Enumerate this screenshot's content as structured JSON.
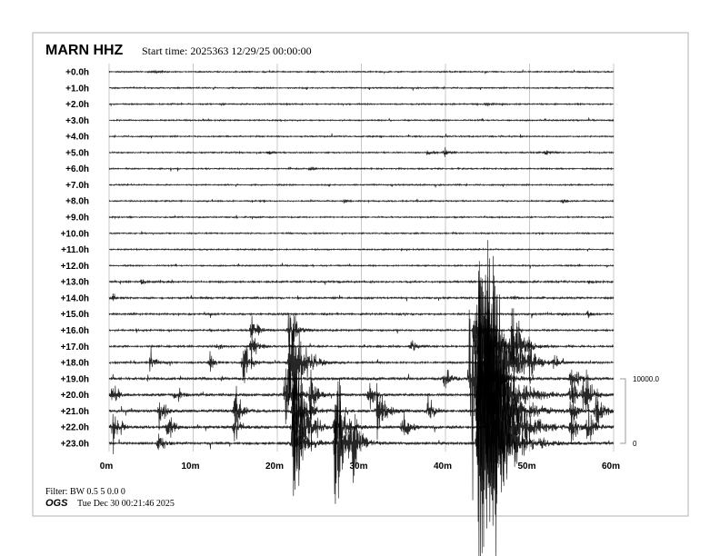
{
  "header": {
    "station": "MARN HHZ",
    "start_time": "Start time: 2025363 12/29/25 00:00:00"
  },
  "footer": {
    "filter": "Filter: BW 0.5 5 0.0 0",
    "org": "OGS",
    "generated": "Tue Dec 30 00:21:46 2025"
  },
  "chart_data": {
    "type": "helicorder",
    "title": "MARN HHZ",
    "row_labels": [
      "+0.0h",
      "+1.0h",
      "+2.0h",
      "+3.0h",
      "+4.0h",
      "+5.0h",
      "+6.0h",
      "+7.0h",
      "+8.0h",
      "+9.0h",
      "+10.0h",
      "+11.0h",
      "+12.0h",
      "+13.0h",
      "+14.0h",
      "+15.0h",
      "+16.0h",
      "+17.0h",
      "+18.0h",
      "+19.0h",
      "+20.0h",
      "+21.0h",
      "+22.0h",
      "+23.0h"
    ],
    "x_ticks": [
      "0m",
      "10m",
      "20m",
      "30m",
      "40m",
      "50m",
      "60m"
    ],
    "x_range_minutes": [
      0,
      60
    ],
    "amplitude_scale": {
      "top_label": "10000.0",
      "bottom_label": "0",
      "top_value": 10000,
      "bottom_value": 0
    },
    "grid": true,
    "trace_color": "#000000",
    "grid_color": "#c8c8c8",
    "events": [
      {
        "row": 0,
        "minute": 5.5,
        "amp": 300
      },
      {
        "row": 2,
        "minute": 45,
        "amp": 300
      },
      {
        "row": 5,
        "minute": 19,
        "amp": 400
      },
      {
        "row": 5,
        "minute": 38,
        "amp": 600
      },
      {
        "row": 5,
        "minute": 40,
        "amp": 800
      },
      {
        "row": 5,
        "minute": 52,
        "amp": 500
      },
      {
        "row": 6,
        "minute": 24,
        "amp": 300
      },
      {
        "row": 8,
        "minute": 28,
        "amp": 300
      },
      {
        "row": 8,
        "minute": 54,
        "amp": 300
      },
      {
        "row": 13,
        "minute": 4,
        "amp": 500
      },
      {
        "row": 13,
        "minute": 57,
        "amp": 300
      },
      {
        "row": 14,
        "minute": 0.5,
        "amp": 600
      },
      {
        "row": 14,
        "minute": 48,
        "amp": 500
      },
      {
        "row": 15,
        "minute": 57,
        "amp": 700
      },
      {
        "row": 15,
        "minute": 54,
        "amp": 400
      },
      {
        "row": 16,
        "minute": 17,
        "amp": 3000
      },
      {
        "row": 16,
        "minute": 21.5,
        "amp": 5000
      },
      {
        "row": 16,
        "minute": 43.5,
        "amp": 6000
      },
      {
        "row": 17,
        "minute": 13,
        "amp": 800
      },
      {
        "row": 17,
        "minute": 17,
        "amp": 3000
      },
      {
        "row": 17,
        "minute": 36,
        "amp": 1500
      },
      {
        "row": 17,
        "minute": 44,
        "amp": 20000
      },
      {
        "row": 17,
        "minute": 48,
        "amp": 8000
      },
      {
        "row": 18,
        "minute": 5,
        "amp": 2000
      },
      {
        "row": 18,
        "minute": 12,
        "amp": 1500
      },
      {
        "row": 18,
        "minute": 16,
        "amp": 4000
      },
      {
        "row": 18,
        "minute": 21.5,
        "amp": 15000
      },
      {
        "row": 18,
        "minute": 45,
        "amp": 25000
      },
      {
        "row": 18,
        "minute": 50,
        "amp": 3000
      },
      {
        "row": 18,
        "minute": 53,
        "amp": 1500
      },
      {
        "row": 19,
        "minute": 40,
        "amp": 2000
      },
      {
        "row": 19,
        "minute": 43,
        "amp": 20000
      },
      {
        "row": 19,
        "minute": 55,
        "amp": 4000
      },
      {
        "row": 20,
        "minute": 0.5,
        "amp": 2000
      },
      {
        "row": 20,
        "minute": 8,
        "amp": 2000
      },
      {
        "row": 20,
        "minute": 21,
        "amp": 8000
      },
      {
        "row": 20,
        "minute": 24,
        "amp": 4000
      },
      {
        "row": 20,
        "minute": 31,
        "amp": 2500
      },
      {
        "row": 20,
        "minute": 44,
        "amp": 30000
      },
      {
        "row": 20,
        "minute": 55,
        "amp": 3000
      },
      {
        "row": 20,
        "minute": 56.5,
        "amp": 5000
      },
      {
        "row": 21,
        "minute": 6,
        "amp": 3000
      },
      {
        "row": 21,
        "minute": 15,
        "amp": 4000
      },
      {
        "row": 21,
        "minute": 22,
        "amp": 10000
      },
      {
        "row": 21,
        "minute": 32,
        "amp": 6000
      },
      {
        "row": 21,
        "minute": 38,
        "amp": 2500
      },
      {
        "row": 21,
        "minute": 44,
        "amp": 30000
      },
      {
        "row": 21,
        "minute": 55,
        "amp": 3000
      },
      {
        "row": 21,
        "minute": 58,
        "amp": 4000
      },
      {
        "row": 22,
        "minute": 0.5,
        "amp": 4000
      },
      {
        "row": 22,
        "minute": 7,
        "amp": 3000
      },
      {
        "row": 22,
        "minute": 15,
        "amp": 3000
      },
      {
        "row": 22,
        "minute": 22,
        "amp": 15000
      },
      {
        "row": 22,
        "minute": 27,
        "amp": 8000
      },
      {
        "row": 22,
        "minute": 35,
        "amp": 3000
      },
      {
        "row": 22,
        "minute": 45,
        "amp": 30000
      },
      {
        "row": 22,
        "minute": 55,
        "amp": 3000
      },
      {
        "row": 22,
        "minute": 57,
        "amp": 4000
      },
      {
        "row": 23,
        "minute": 6,
        "amp": 2000
      },
      {
        "row": 23,
        "minute": 22,
        "amp": 10000
      },
      {
        "row": 23,
        "minute": 27,
        "amp": 12000
      },
      {
        "row": 23,
        "minute": 29,
        "amp": 6000
      },
      {
        "row": 23,
        "minute": 44,
        "amp": 30000
      }
    ]
  }
}
